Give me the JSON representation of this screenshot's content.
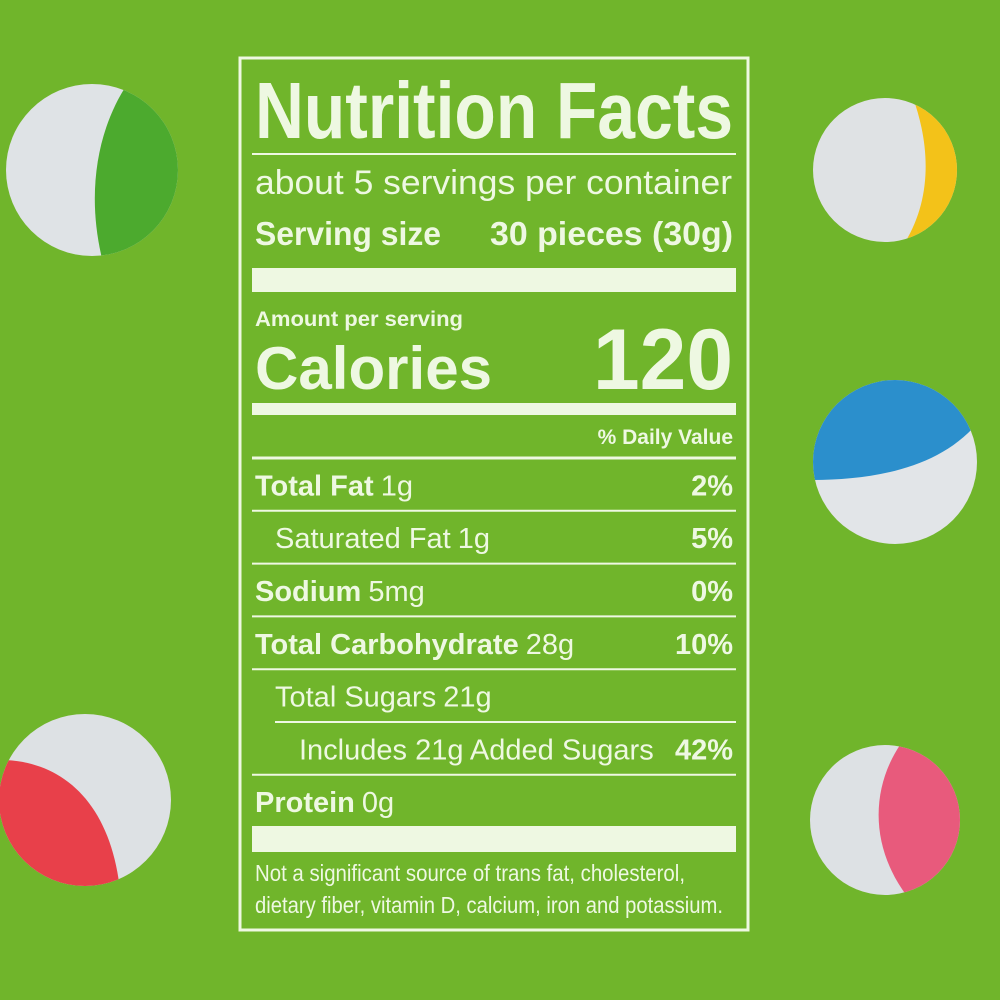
{
  "title": "Nutrition Facts",
  "servings": "about 5 servings per container",
  "serving_size": {
    "label": "Serving size",
    "value": "30 pieces (30g)"
  },
  "amount_per_serving": "Amount per serving",
  "calories": {
    "label": "Calories",
    "value": "120"
  },
  "daily_value_header": "% Daily Value",
  "rows": [
    {
      "name": "Total Fat",
      "amount": "1g",
      "dv": "2%",
      "bold": true,
      "indent": 0
    },
    {
      "name": "Saturated Fat",
      "amount": "1g",
      "dv": "5%",
      "bold": false,
      "indent": 1
    },
    {
      "name": "Sodium",
      "amount": "5mg",
      "dv": "0%",
      "bold": true,
      "indent": 0
    },
    {
      "name": "Total Carbohydrate",
      "amount": "28g",
      "dv": "10%",
      "bold": true,
      "indent": 0
    },
    {
      "name": "Total Sugars",
      "amount": "21g",
      "dv": null,
      "bold": false,
      "indent": 1
    },
    {
      "name": "Includes 21g Added Sugars",
      "amount": null,
      "dv": "42%",
      "bold": false,
      "indent": 2
    },
    {
      "name": "Protein",
      "amount": "0g",
      "dv": null,
      "bold": true,
      "indent": 0
    }
  ],
  "footnote": [
    "Not a significant source of trans fat, cholesterol,",
    "dietary fiber, vitamin D, calcium, iron and potassium."
  ]
}
